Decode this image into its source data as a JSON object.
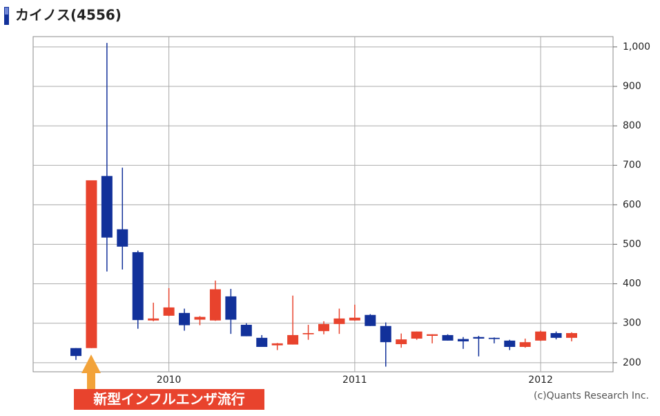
{
  "chart_data": {
    "type": "candlestick",
    "title": "カイノス(4556)",
    "annotation": "新型インフルエンザ流行",
    "credit": "(c)Quants Research Inc.",
    "up_color": "#e8432d",
    "down_color": "#12319a",
    "grid": true,
    "categories": [
      null,
      null,
      null,
      null,
      null,
      null,
      "2010",
      null,
      null,
      null,
      null,
      null,
      null,
      null,
      null,
      null,
      null,
      null,
      "2011",
      null,
      null,
      null,
      null,
      null,
      null,
      null,
      null,
      null,
      null,
      null,
      "2012",
      null,
      null
    ],
    "open": [
      237,
      237,
      673,
      538,
      480,
      307,
      319,
      326,
      309,
      307,
      368,
      296,
      263,
      244,
      246,
      272,
      280,
      298,
      307,
      321,
      293,
      247,
      261,
      268,
      270,
      260,
      265,
      263,
      256,
      240,
      256,
      275,
      263
    ],
    "high": [
      237,
      662,
      1010,
      694,
      484,
      352,
      389,
      337,
      318,
      408,
      387,
      300,
      270,
      250,
      370,
      296,
      305,
      337,
      347,
      323,
      302,
      274,
      279,
      272,
      272,
      265,
      268,
      264,
      258,
      261,
      281,
      279,
      277
    ],
    "low": [
      207,
      237,
      431,
      436,
      286,
      305,
      318,
      281,
      295,
      306,
      273,
      267,
      240,
      232,
      246,
      258,
      272,
      273,
      306,
      293,
      190,
      238,
      258,
      249,
      256,
      235,
      216,
      249,
      232,
      238,
      255,
      259,
      254
    ],
    "close": [
      217,
      662,
      517,
      494,
      308,
      312,
      340,
      295,
      316,
      386,
      309,
      267,
      240,
      249,
      270,
      275,
      298,
      312,
      314,
      293,
      252,
      259,
      279,
      272,
      256,
      254,
      261,
      260,
      240,
      252,
      279,
      263,
      275
    ],
    "ylim": [
      177,
      1026
    ],
    "yticks": [
      200,
      300,
      400,
      500,
      600,
      700,
      800,
      900,
      {
        "value": 1000,
        "label": "1,000"
      }
    ]
  }
}
